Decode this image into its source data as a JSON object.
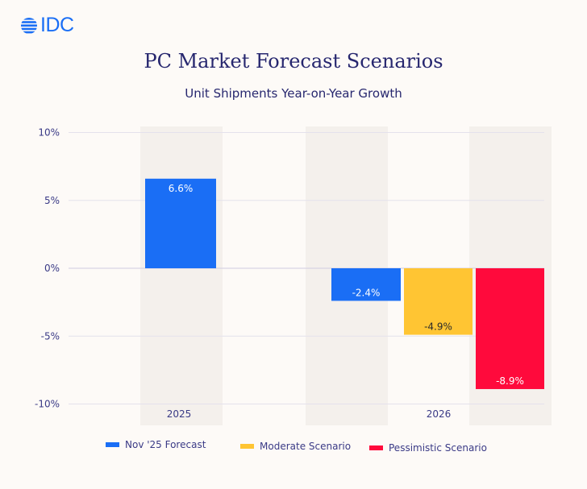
{
  "logo": {
    "text": "IDC",
    "color": "#1a6ef5"
  },
  "chart_data": {
    "type": "bar",
    "title": "PC Market Forecast Scenarios",
    "subtitle": "Unit Shipments Year-on-Year Growth",
    "categories": [
      "2025",
      "2026"
    ],
    "series": [
      {
        "name": "Nov '25 Forecast",
        "color": "#1a6ef5",
        "values": [
          6.6,
          -2.4
        ],
        "labels": [
          "6.6%",
          "-2.4%"
        ]
      },
      {
        "name": "Moderate Scenario",
        "color": "#ffc533",
        "values": [
          null,
          -4.9
        ],
        "labels": [
          null,
          "-4.9%"
        ]
      },
      {
        "name": "Pessimistic Scenario",
        "color": "#ff0a3c",
        "values": [
          null,
          -8.9
        ],
        "labels": [
          null,
          "-8.9%"
        ]
      }
    ],
    "yticks": [
      10,
      5,
      0,
      -5,
      -10
    ],
    "ytick_labels": [
      "10%",
      "5%",
      "0%",
      "-5%",
      "-10%"
    ],
    "ylim": [
      -10,
      10
    ],
    "xlabel": "",
    "ylabel": "",
    "grid": true,
    "legend": "bottom"
  }
}
